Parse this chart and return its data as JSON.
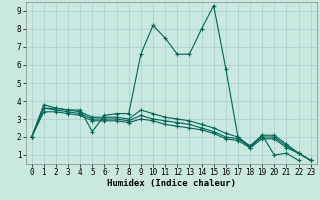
{
  "xlabel": "Humidex (Indice chaleur)",
  "bg_color": "#c8e8e0",
  "grid_color": "#aacccc",
  "line_color": "#006655",
  "xlim": [
    -0.5,
    23.5
  ],
  "ylim": [
    0.5,
    9.5
  ],
  "xticks": [
    0,
    1,
    2,
    3,
    4,
    5,
    6,
    7,
    8,
    9,
    10,
    11,
    12,
    13,
    14,
    15,
    16,
    17,
    18,
    19,
    20,
    21,
    22,
    23
  ],
  "yticks": [
    1,
    2,
    3,
    4,
    5,
    6,
    7,
    8,
    9
  ],
  "lines": [
    {
      "x": [
        0,
        1,
        2,
        3,
        4,
        5,
        6,
        7,
        8,
        9,
        10,
        11,
        12,
        13,
        14,
        15,
        16,
        17,
        18,
        19,
        20,
        21,
        22
      ],
      "y": [
        2.0,
        3.8,
        3.6,
        3.5,
        3.5,
        2.3,
        3.2,
        3.3,
        3.3,
        6.6,
        8.2,
        7.5,
        6.6,
        6.6,
        8.0,
        9.3,
        5.8,
        2.0,
        1.4,
        2.1,
        1.0,
        1.1,
        0.7
      ]
    },
    {
      "x": [
        0,
        1,
        2,
        3,
        4,
        5,
        6,
        7,
        8,
        9,
        10,
        11,
        12,
        13,
        14,
        15,
        16,
        17,
        18,
        19,
        20,
        21,
        22,
        23
      ],
      "y": [
        2.0,
        3.6,
        3.6,
        3.5,
        3.4,
        3.1,
        3.1,
        3.1,
        3.0,
        3.5,
        3.3,
        3.1,
        3.0,
        2.9,
        2.7,
        2.5,
        2.2,
        2.0,
        1.5,
        2.1,
        2.1,
        1.6,
        1.1,
        0.7
      ]
    },
    {
      "x": [
        0,
        1,
        2,
        3,
        4,
        5,
        6,
        7,
        8,
        9,
        10,
        11,
        12,
        13,
        14,
        15,
        16,
        17,
        18,
        19,
        20,
        21,
        22,
        23
      ],
      "y": [
        2.0,
        3.6,
        3.5,
        3.4,
        3.3,
        3.0,
        3.0,
        3.0,
        2.9,
        3.2,
        3.0,
        2.9,
        2.8,
        2.7,
        2.5,
        2.3,
        2.0,
        1.9,
        1.5,
        2.0,
        2.0,
        1.5,
        1.1,
        0.7
      ]
    },
    {
      "x": [
        0,
        1,
        2,
        3,
        4,
        5,
        6,
        7,
        8,
        9,
        10,
        11,
        12,
        13,
        14,
        15,
        16,
        17,
        18,
        19,
        20,
        21,
        22,
        23
      ],
      "y": [
        2.0,
        3.4,
        3.4,
        3.3,
        3.2,
        2.9,
        2.9,
        2.9,
        2.8,
        3.0,
        2.9,
        2.7,
        2.6,
        2.5,
        2.4,
        2.2,
        1.9,
        1.8,
        1.4,
        1.9,
        1.9,
        1.4,
        1.1,
        0.7
      ]
    }
  ],
  "marker": "+",
  "markersize": 3,
  "linewidth": 0.8,
  "label_fontsize": 6.5,
  "tick_fontsize": 5.5
}
